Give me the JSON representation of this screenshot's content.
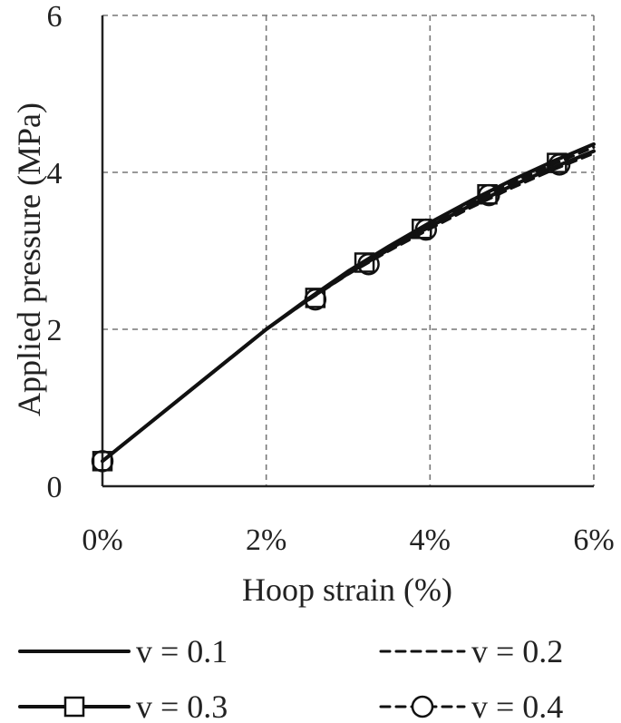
{
  "chart_data": {
    "type": "line",
    "xlabel": "Hoop strain (%)",
    "ylabel": "Applied pressure (MPa)",
    "xlim": [
      0,
      6
    ],
    "ylim": [
      0,
      6
    ],
    "x_ticks": [
      "0%",
      "2%",
      "4%",
      "6%"
    ],
    "y_ticks": [
      "0",
      "2",
      "4",
      "6"
    ],
    "grid": true,
    "legend_position": "bottom",
    "series": [
      {
        "name": "v = 0.1",
        "line_style": "solid",
        "marker": "none",
        "x": [
          0.0,
          0.5,
          1.0,
          1.5,
          2.0,
          2.5,
          3.0,
          3.5,
          4.0,
          4.5,
          5.0,
          5.5,
          6.0
        ],
        "y": [
          0.32,
          0.74,
          1.16,
          1.58,
          2.0,
          2.38,
          2.74,
          3.06,
          3.36,
          3.64,
          3.9,
          4.14,
          4.36
        ]
      },
      {
        "name": "v = 0.2",
        "line_style": "dashed",
        "marker": "none",
        "x": [
          0.0,
          0.5,
          1.0,
          1.5,
          2.0,
          2.5,
          3.0,
          3.5,
          4.0,
          4.5,
          5.0,
          5.5,
          6.0
        ],
        "y": [
          0.32,
          0.74,
          1.16,
          1.58,
          2.0,
          2.37,
          2.72,
          3.04,
          3.34,
          3.62,
          3.87,
          4.1,
          4.32
        ]
      },
      {
        "name": "v = 0.3",
        "line_style": "solid",
        "marker": "square",
        "x": [
          0.0,
          0.5,
          1.0,
          1.5,
          2.0,
          2.5,
          3.0,
          3.5,
          4.0,
          4.5,
          5.0,
          5.5,
          6.0
        ],
        "y": [
          0.32,
          0.74,
          1.16,
          1.58,
          2.0,
          2.37,
          2.71,
          3.02,
          3.31,
          3.58,
          3.83,
          4.06,
          4.27
        ],
        "marker_points": [
          [
            0.0,
            0.32
          ],
          [
            2.6,
            2.4
          ],
          [
            3.2,
            2.85
          ],
          [
            3.9,
            3.28
          ],
          [
            4.7,
            3.72
          ],
          [
            5.55,
            4.12
          ]
        ]
      },
      {
        "name": "v = 0.4",
        "line_style": "dashed",
        "marker": "circle",
        "x": [
          0.0,
          0.5,
          1.0,
          1.5,
          2.0,
          2.5,
          3.0,
          3.5,
          4.0,
          4.5,
          5.0,
          5.5,
          6.0
        ],
        "y": [
          0.32,
          0.74,
          1.16,
          1.58,
          2.0,
          2.36,
          2.7,
          3.0,
          3.28,
          3.55,
          3.8,
          4.03,
          4.24
        ],
        "marker_points": [
          [
            0.0,
            0.32
          ],
          [
            2.6,
            2.38
          ],
          [
            3.25,
            2.83
          ],
          [
            3.95,
            3.27
          ],
          [
            4.72,
            3.71
          ],
          [
            5.58,
            4.1
          ]
        ]
      }
    ]
  }
}
